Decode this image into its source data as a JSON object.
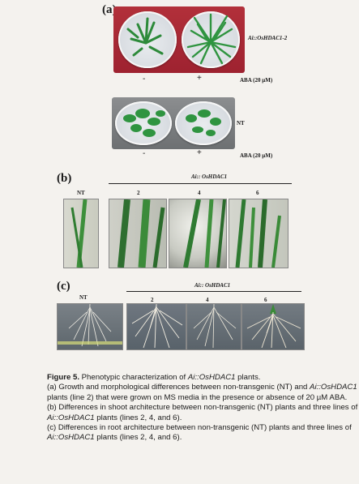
{
  "figure": {
    "panel_a": {
      "letter": "(a)",
      "line_label": "Ai::OsHDAC1-2",
      "nt_label": "NT",
      "top_minus": "-",
      "top_plus": "+",
      "top_aba": "ABA (20 µM)",
      "bottom_minus": "-",
      "bottom_plus": "+",
      "bottom_aba": "ABA (20 µM)"
    },
    "panel_b": {
      "letter": "(b)",
      "group_label": "Ai:: OsHDAC1",
      "nt": "NT",
      "l2": "2",
      "l4": "4",
      "l6": "6"
    },
    "panel_c": {
      "letter": "(c)",
      "group_label": "Ai:: OsHDAC1",
      "nt": "NT",
      "l2": "2",
      "l4": "4",
      "l6": "6"
    }
  },
  "caption": {
    "figure_label": "Figure 5.",
    "title_pre": "Phenotypic characterization of ",
    "title_gene": "Ai::OsHDAC1",
    "title_post": " plants.",
    "a_text_1": "(a) Growth and morphological differences between non-transgenic (NT) and ",
    "a_gene": "Ai::OsHDAC1",
    "a_text_2": " plants (line 2) that were grown on MS media in the presence or absence of 20 µM ABA.",
    "b_text_1": "(b) Differences in shoot architecture between non-transgenic (NT) plants and three lines of ",
    "b_gene": "Ai::OsHDAC1",
    "b_text_2": " plants (lines 2, 4, and 6).",
    "c_text_1": "(c) Differences in root architecture between non-transgenic (NT) plants and three lines of ",
    "c_gene": "Ai::OsHDAC1",
    "c_text_2": " plants (lines 2, 4, and 6)."
  }
}
